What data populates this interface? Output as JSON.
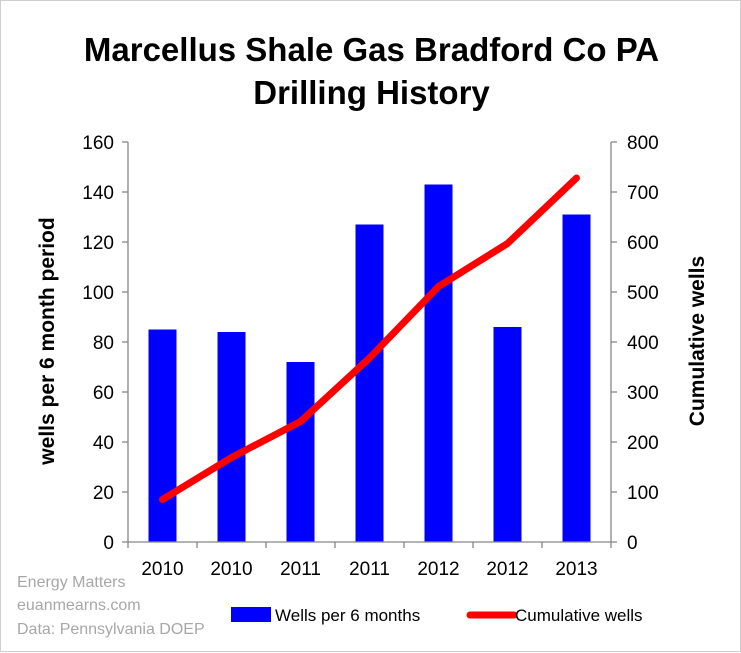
{
  "chart_data": {
    "type": "bar",
    "title_lines": [
      "Marcellus Shale Gas Bradford Co PA",
      "Drilling History"
    ],
    "categories": [
      "2010",
      "2010",
      "2011",
      "2011",
      "2012",
      "2012",
      "2013"
    ],
    "ylabel": "wells per 6 month period",
    "y2label": "Cumulative wells",
    "ylim": [
      0,
      160
    ],
    "y2lim": [
      0,
      800
    ],
    "yticks": [
      "0",
      "20",
      "40",
      "60",
      "80",
      "100",
      "120",
      "140",
      "160"
    ],
    "y2ticks": [
      "0",
      "100",
      "200",
      "300",
      "400",
      "500",
      "600",
      "700",
      "800"
    ],
    "grid": false,
    "legend_position": "bottom",
    "series": [
      {
        "name": "Wells per 6 months",
        "type": "bar",
        "axis": "left",
        "color": "#0000ff",
        "values": [
          85,
          84,
          72,
          127,
          143,
          86,
          131
        ]
      },
      {
        "name": "Cumulative wells",
        "type": "line",
        "axis": "right",
        "color": "#ff0000",
        "values": [
          85,
          169,
          241,
          368,
          511,
          597,
          728
        ]
      }
    ]
  },
  "source_notes": [
    "Energy Matters",
    "euanmearns.com",
    "Data: Pennsylvania DOEP"
  ]
}
